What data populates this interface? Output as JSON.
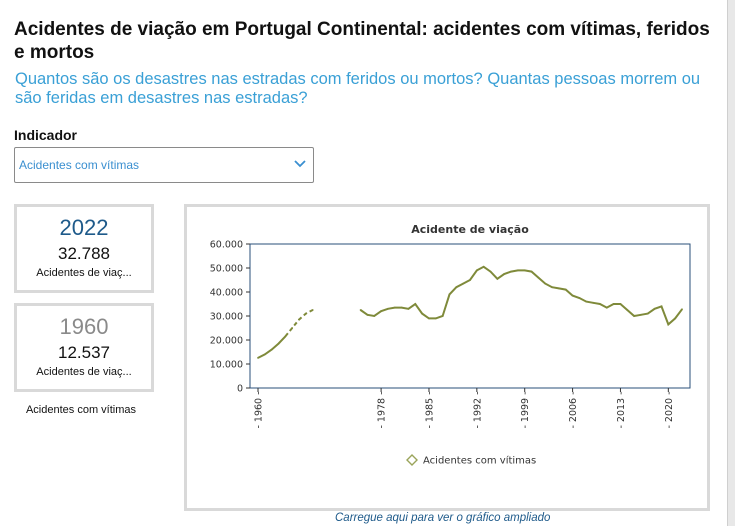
{
  "header": {
    "title": "Acidentes de viação em Portugal Continental: acidentes com vítimas, feridos e mortos",
    "subtitle": "Quantos são os desastres nas estradas com feridos ou mortos? Quantas pessoas morrem ou são feridas em desastres nas estradas?"
  },
  "indicator": {
    "label": "Indicador",
    "selected": "Acidentes com vítimas"
  },
  "cards": [
    {
      "year": "2022",
      "value": "32.788",
      "label": "Acidentes de viaç..."
    },
    {
      "year": "1960",
      "value": "12.537",
      "label": "Acidentes de viaç..."
    }
  ],
  "cards_caption": "Acidentes com vítimas",
  "enlarge_link": "Carregue aqui para ver o gráfico ampliado",
  "colors": {
    "accent": "#3aa0d6",
    "line": "#7f8a3a",
    "card_year_recent": "#1e5a8a",
    "card_year_old": "#8a8a8a"
  },
  "chart_data": {
    "type": "line",
    "title": "Acidente de viação",
    "xlabel": "",
    "ylabel": "",
    "ylim": [
      0,
      60000
    ],
    "xlim": [
      1960,
      2022
    ],
    "yticks": [
      "0",
      "10.000",
      "20.000",
      "30.000",
      "40.000",
      "50.000",
      "60.000"
    ],
    "xticks": [
      "1960",
      "1978",
      "1985",
      "1992",
      "1999",
      "2006",
      "2013",
      "2020"
    ],
    "grid": false,
    "legend": "bottom",
    "series": [
      {
        "name": "Acidentes com vítimas",
        "points": [
          {
            "x": 1960,
            "y": 12537
          },
          {
            "x": 1961,
            "y": 14000
          },
          {
            "x": 1962,
            "y": 16000
          },
          {
            "x": 1963,
            "y": 18500
          },
          {
            "x": 1964,
            "y": 21500
          },
          {
            "x": 1965,
            "y": 25000
          },
          {
            "x": 1966,
            "y": 28500
          },
          {
            "x": 1967,
            "y": 31000
          },
          {
            "x": 1968,
            "y": 32500
          },
          {
            "x": 1975,
            "y": 32500
          },
          {
            "x": 1976,
            "y": 30500
          },
          {
            "x": 1977,
            "y": 30000
          },
          {
            "x": 1978,
            "y": 32000
          },
          {
            "x": 1979,
            "y": 33000
          },
          {
            "x": 1980,
            "y": 33500
          },
          {
            "x": 1981,
            "y": 33500
          },
          {
            "x": 1982,
            "y": 33000
          },
          {
            "x": 1983,
            "y": 35000
          },
          {
            "x": 1984,
            "y": 31000
          },
          {
            "x": 1985,
            "y": 29000
          },
          {
            "x": 1986,
            "y": 29000
          },
          {
            "x": 1987,
            "y": 30000
          },
          {
            "x": 1988,
            "y": 39000
          },
          {
            "x": 1989,
            "y": 42000
          },
          {
            "x": 1990,
            "y": 43500
          },
          {
            "x": 1991,
            "y": 45000
          },
          {
            "x": 1992,
            "y": 49000
          },
          {
            "x": 1993,
            "y": 50500
          },
          {
            "x": 1994,
            "y": 48500
          },
          {
            "x": 1995,
            "y": 45500
          },
          {
            "x": 1996,
            "y": 47500
          },
          {
            "x": 1997,
            "y": 48500
          },
          {
            "x": 1998,
            "y": 49000
          },
          {
            "x": 1999,
            "y": 49000
          },
          {
            "x": 2000,
            "y": 48500
          },
          {
            "x": 2001,
            "y": 46000
          },
          {
            "x": 2002,
            "y": 43500
          },
          {
            "x": 2003,
            "y": 42000
          },
          {
            "x": 2004,
            "y": 41500
          },
          {
            "x": 2005,
            "y": 41000
          },
          {
            "x": 2006,
            "y": 38500
          },
          {
            "x": 2007,
            "y": 37500
          },
          {
            "x": 2008,
            "y": 36000
          },
          {
            "x": 2009,
            "y": 35500
          },
          {
            "x": 2010,
            "y": 35000
          },
          {
            "x": 2011,
            "y": 33500
          },
          {
            "x": 2012,
            "y": 35000
          },
          {
            "x": 2013,
            "y": 35000
          },
          {
            "x": 2014,
            "y": 32500
          },
          {
            "x": 2015,
            "y": 30000
          },
          {
            "x": 2016,
            "y": 30500
          },
          {
            "x": 2017,
            "y": 31000
          },
          {
            "x": 2018,
            "y": 33000
          },
          {
            "x": 2019,
            "y": 34000
          },
          {
            "x": 2020,
            "y": 26500
          },
          {
            "x": 2021,
            "y": 29000
          },
          {
            "x": 2022,
            "y": 32788
          }
        ]
      }
    ]
  }
}
